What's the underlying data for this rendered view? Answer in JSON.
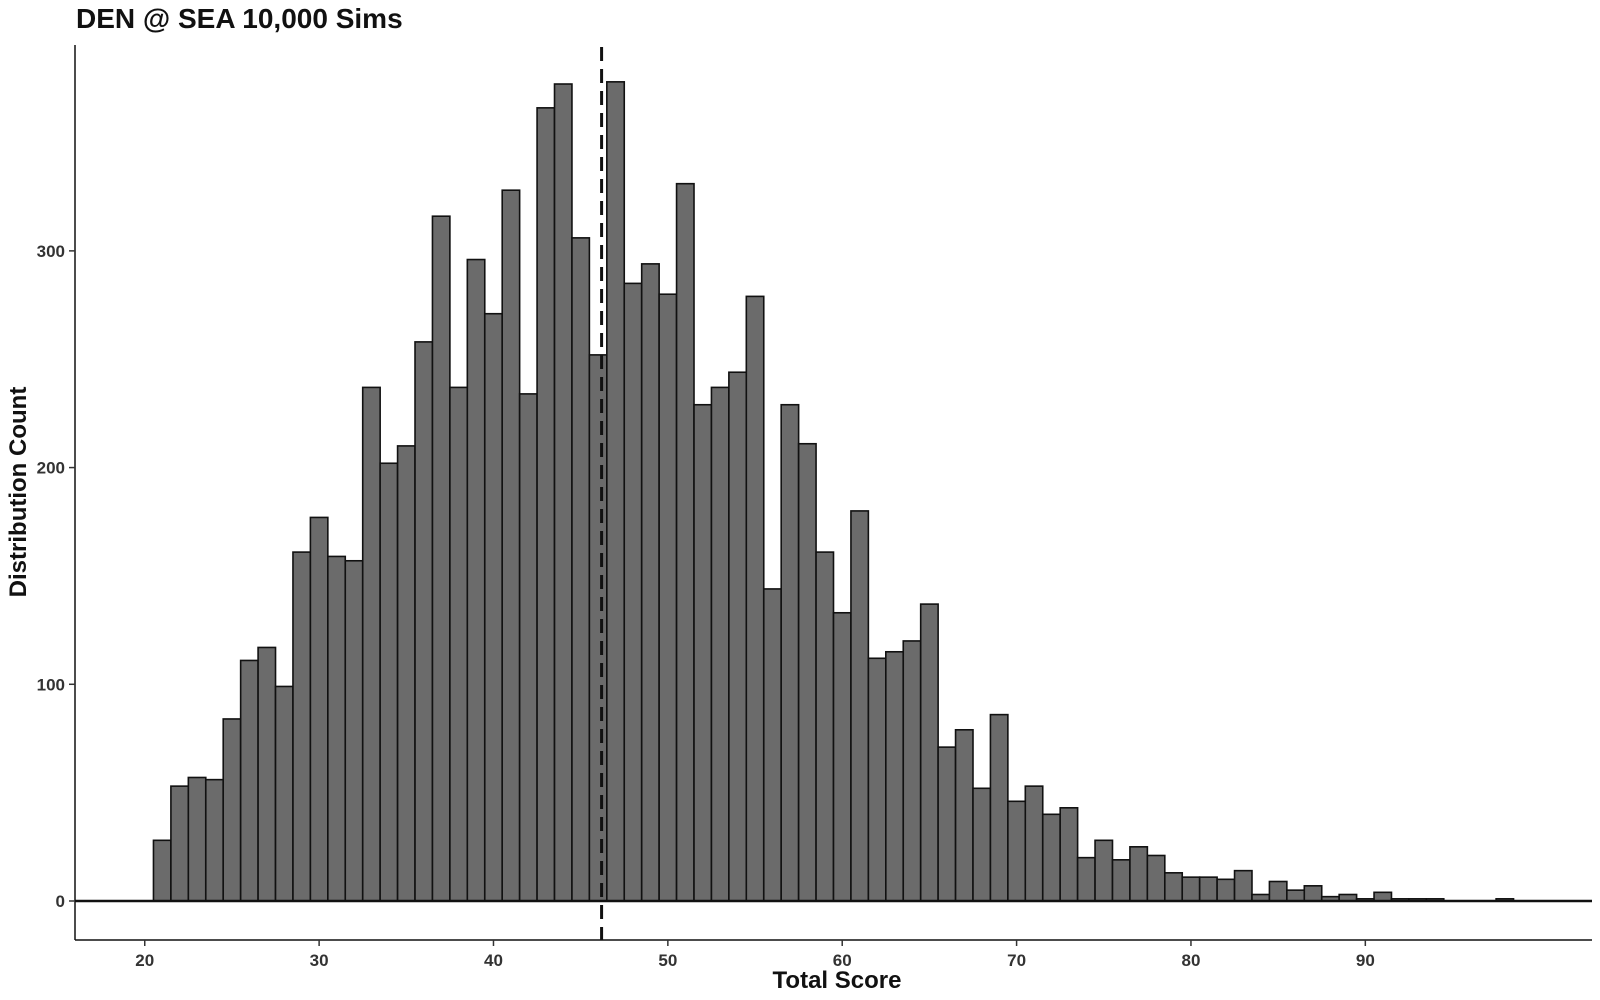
{
  "chart_data": {
    "type": "bar",
    "title": "DEN @ SEA 10,000 Sims",
    "xlabel": "Total Score",
    "ylabel": "Distribution Count",
    "x_ticks": [
      20,
      30,
      40,
      50,
      60,
      70,
      80,
      90
    ],
    "y_ticks": [
      0,
      100,
      200,
      300
    ],
    "xlim": [
      16,
      103
    ],
    "ylim": [
      -18,
      395
    ],
    "grid": false,
    "legend": "none",
    "bar_fill": "#6b6b6b",
    "bar_edge": "#111111",
    "reference_line": {
      "x": 46.2,
      "style": "dashed",
      "color": "#111111"
    },
    "bins": [
      {
        "x": 21,
        "count": 28
      },
      {
        "x": 22,
        "count": 53
      },
      {
        "x": 23,
        "count": 57
      },
      {
        "x": 24,
        "count": 56
      },
      {
        "x": 25,
        "count": 84
      },
      {
        "x": 26,
        "count": 111
      },
      {
        "x": 27,
        "count": 117
      },
      {
        "x": 28,
        "count": 99
      },
      {
        "x": 29,
        "count": 161
      },
      {
        "x": 30,
        "count": 177
      },
      {
        "x": 31,
        "count": 159
      },
      {
        "x": 32,
        "count": 157
      },
      {
        "x": 33,
        "count": 237
      },
      {
        "x": 34,
        "count": 202
      },
      {
        "x": 35,
        "count": 210
      },
      {
        "x": 36,
        "count": 258
      },
      {
        "x": 37,
        "count": 316
      },
      {
        "x": 38,
        "count": 237
      },
      {
        "x": 39,
        "count": 296
      },
      {
        "x": 40,
        "count": 271
      },
      {
        "x": 41,
        "count": 328
      },
      {
        "x": 42,
        "count": 234
      },
      {
        "x": 43,
        "count": 366
      },
      {
        "x": 44,
        "count": 377
      },
      {
        "x": 45,
        "count": 306
      },
      {
        "x": 46,
        "count": 252
      },
      {
        "x": 47,
        "count": 378
      },
      {
        "x": 48,
        "count": 285
      },
      {
        "x": 49,
        "count": 294
      },
      {
        "x": 50,
        "count": 280
      },
      {
        "x": 51,
        "count": 331
      },
      {
        "x": 52,
        "count": 229
      },
      {
        "x": 53,
        "count": 237
      },
      {
        "x": 54,
        "count": 244
      },
      {
        "x": 55,
        "count": 279
      },
      {
        "x": 56,
        "count": 144
      },
      {
        "x": 57,
        "count": 229
      },
      {
        "x": 58,
        "count": 211
      },
      {
        "x": 59,
        "count": 161
      },
      {
        "x": 60,
        "count": 133
      },
      {
        "x": 61,
        "count": 180
      },
      {
        "x": 62,
        "count": 112
      },
      {
        "x": 63,
        "count": 115
      },
      {
        "x": 64,
        "count": 120
      },
      {
        "x": 65,
        "count": 137
      },
      {
        "x": 66,
        "count": 71
      },
      {
        "x": 67,
        "count": 79
      },
      {
        "x": 68,
        "count": 52
      },
      {
        "x": 69,
        "count": 86
      },
      {
        "x": 70,
        "count": 46
      },
      {
        "x": 71,
        "count": 53
      },
      {
        "x": 72,
        "count": 40
      },
      {
        "x": 73,
        "count": 43
      },
      {
        "x": 74,
        "count": 20
      },
      {
        "x": 75,
        "count": 28
      },
      {
        "x": 76,
        "count": 19
      },
      {
        "x": 77,
        "count": 25
      },
      {
        "x": 78,
        "count": 21
      },
      {
        "x": 79,
        "count": 13
      },
      {
        "x": 80,
        "count": 11
      },
      {
        "x": 81,
        "count": 11
      },
      {
        "x": 82,
        "count": 10
      },
      {
        "x": 83,
        "count": 14
      },
      {
        "x": 84,
        "count": 3
      },
      {
        "x": 85,
        "count": 9
      },
      {
        "x": 86,
        "count": 5
      },
      {
        "x": 87,
        "count": 7
      },
      {
        "x": 88,
        "count": 2
      },
      {
        "x": 89,
        "count": 3
      },
      {
        "x": 90,
        "count": 1
      },
      {
        "x": 91,
        "count": 4
      },
      {
        "x": 92,
        "count": 1
      },
      {
        "x": 93,
        "count": 1
      },
      {
        "x": 94,
        "count": 1
      },
      {
        "x": 95,
        "count": 0
      },
      {
        "x": 96,
        "count": 0
      },
      {
        "x": 97,
        "count": 0
      },
      {
        "x": 98,
        "count": 1
      },
      {
        "x": 99,
        "count": 0
      },
      {
        "x": 100,
        "count": 0
      },
      {
        "x": 101,
        "count": 0
      },
      {
        "x": 102,
        "count": 0
      }
    ]
  }
}
